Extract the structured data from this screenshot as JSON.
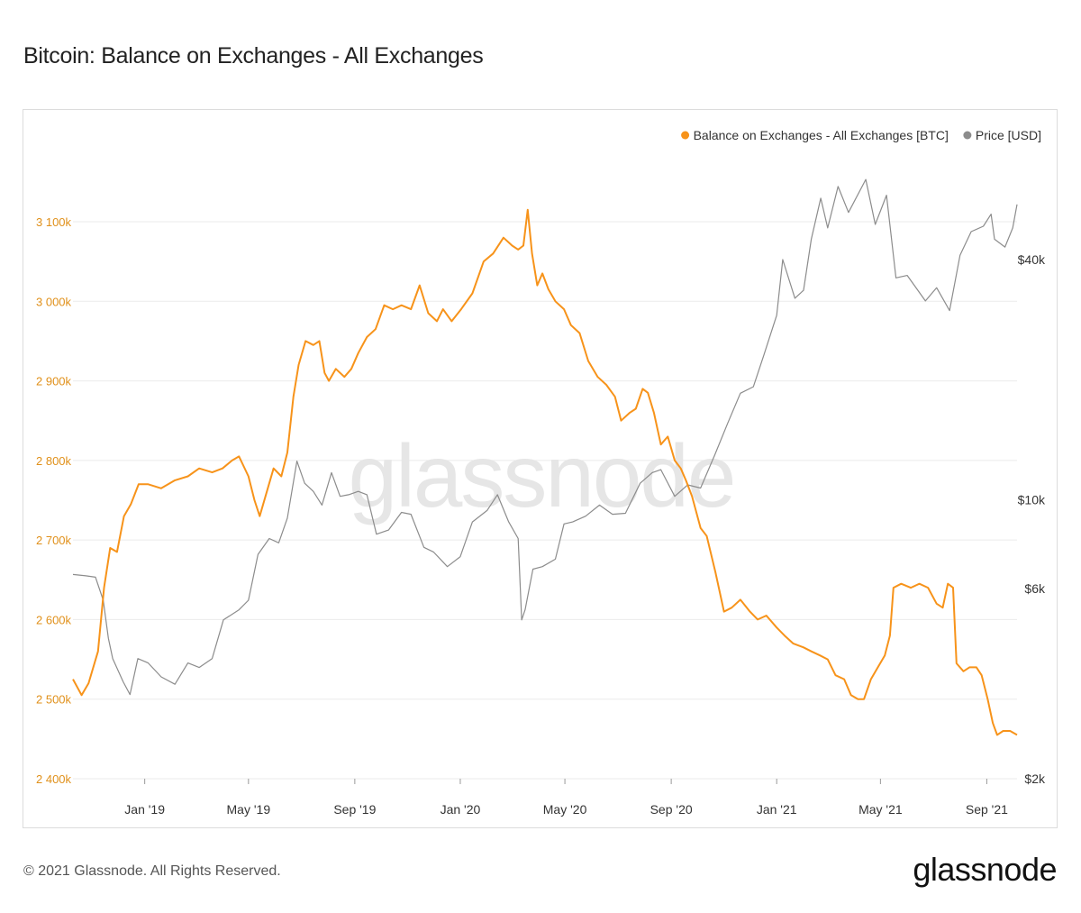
{
  "page": {
    "title": "Bitcoin: Balance on Exchanges - All Exchanges",
    "footer": "© 2021 Glassnode. All Rights Reserved.",
    "brand": "glassnode",
    "watermark": "glassnode"
  },
  "colors": {
    "balance": "#f7931a",
    "price": "#8c8c8c",
    "grid": "#ebebeb",
    "left_axis_text": "#e0901a",
    "right_axis_text": "#333333"
  },
  "chart_data": {
    "type": "line",
    "title": "Bitcoin: Balance on Exchanges - All Exchanges",
    "xlabel": "",
    "x_tick_labels": [
      "Jan '19",
      "May '19",
      "Sep '19",
      "Jan '20",
      "May '20",
      "Sep '20",
      "Jan '21",
      "May '21",
      "Sep '21"
    ],
    "x_tick_dates": [
      "2019-01-01",
      "2019-05-01",
      "2019-09-01",
      "2020-01-01",
      "2020-05-01",
      "2020-09-01",
      "2021-01-01",
      "2021-05-01",
      "2021-09-01"
    ],
    "x_range": [
      "2018-10-10",
      "2021-10-06"
    ],
    "y_left": {
      "label": "",
      "scale": "linear",
      "range": [
        2400000,
        3100000
      ],
      "ticks": [
        2400000,
        2500000,
        2600000,
        2700000,
        2800000,
        2900000,
        3000000,
        3100000
      ],
      "tick_labels": [
        "2 400k",
        "2 500k",
        "2 600k",
        "2 700k",
        "2 800k",
        "2 900k",
        "3 000k",
        "3 100k"
      ]
    },
    "y_right": {
      "label": "",
      "scale": "log",
      "ticks": [
        2000,
        6000,
        10000,
        40000
      ],
      "tick_labels": [
        "$2k",
        "$6k",
        "$10k",
        "$40k"
      ]
    },
    "legend": {
      "position": "top-right",
      "items": [
        "Balance on Exchanges - All Exchanges [BTC]",
        "Price [USD]"
      ]
    },
    "grid": true,
    "series": [
      {
        "name": "Balance on Exchanges - All Exchanges [BTC]",
        "axis": "left",
        "color": "#f7931a",
        "points": [
          [
            "2018-10-10",
            2525000
          ],
          [
            "2018-10-20",
            2505000
          ],
          [
            "2018-10-28",
            2520000
          ],
          [
            "2018-11-08",
            2560000
          ],
          [
            "2018-11-15",
            2640000
          ],
          [
            "2018-11-22",
            2690000
          ],
          [
            "2018-11-30",
            2685000
          ],
          [
            "2018-12-08",
            2730000
          ],
          [
            "2018-12-16",
            2745000
          ],
          [
            "2018-12-25",
            2770000
          ],
          [
            "2019-01-05",
            2770000
          ],
          [
            "2019-01-20",
            2765000
          ],
          [
            "2019-02-05",
            2775000
          ],
          [
            "2019-02-20",
            2780000
          ],
          [
            "2019-03-05",
            2790000
          ],
          [
            "2019-03-20",
            2785000
          ],
          [
            "2019-04-01",
            2790000
          ],
          [
            "2019-04-12",
            2800000
          ],
          [
            "2019-04-20",
            2805000
          ],
          [
            "2019-05-01",
            2780000
          ],
          [
            "2019-05-08",
            2750000
          ],
          [
            "2019-05-14",
            2730000
          ],
          [
            "2019-05-22",
            2760000
          ],
          [
            "2019-05-30",
            2790000
          ],
          [
            "2019-06-08",
            2780000
          ],
          [
            "2019-06-15",
            2810000
          ],
          [
            "2019-06-22",
            2880000
          ],
          [
            "2019-06-28",
            2920000
          ],
          [
            "2019-07-06",
            2950000
          ],
          [
            "2019-07-15",
            2945000
          ],
          [
            "2019-07-22",
            2950000
          ],
          [
            "2019-07-28",
            2910000
          ],
          [
            "2019-08-02",
            2900000
          ],
          [
            "2019-08-10",
            2915000
          ],
          [
            "2019-08-20",
            2905000
          ],
          [
            "2019-08-28",
            2915000
          ],
          [
            "2019-09-05",
            2935000
          ],
          [
            "2019-09-15",
            2955000
          ],
          [
            "2019-09-25",
            2965000
          ],
          [
            "2019-10-05",
            2995000
          ],
          [
            "2019-10-15",
            2990000
          ],
          [
            "2019-10-25",
            2995000
          ],
          [
            "2019-11-05",
            2990000
          ],
          [
            "2019-11-15",
            3020000
          ],
          [
            "2019-11-25",
            2985000
          ],
          [
            "2019-12-05",
            2975000
          ],
          [
            "2019-12-12",
            2990000
          ],
          [
            "2019-12-22",
            2975000
          ],
          [
            "2020-01-02",
            2990000
          ],
          [
            "2020-01-15",
            3010000
          ],
          [
            "2020-01-28",
            3050000
          ],
          [
            "2020-02-08",
            3060000
          ],
          [
            "2020-02-20",
            3080000
          ],
          [
            "2020-03-01",
            3070000
          ],
          [
            "2020-03-08",
            3065000
          ],
          [
            "2020-03-14",
            3070000
          ],
          [
            "2020-03-19",
            3115000
          ],
          [
            "2020-03-24",
            3060000
          ],
          [
            "2020-03-30",
            3020000
          ],
          [
            "2020-04-05",
            3035000
          ],
          [
            "2020-04-12",
            3015000
          ],
          [
            "2020-04-20",
            3000000
          ],
          [
            "2020-04-30",
            2990000
          ],
          [
            "2020-05-08",
            2970000
          ],
          [
            "2020-05-18",
            2960000
          ],
          [
            "2020-05-28",
            2925000
          ],
          [
            "2020-06-08",
            2905000
          ],
          [
            "2020-06-18",
            2895000
          ],
          [
            "2020-06-28",
            2880000
          ],
          [
            "2020-07-05",
            2850000
          ],
          [
            "2020-07-15",
            2860000
          ],
          [
            "2020-07-22",
            2865000
          ],
          [
            "2020-07-30",
            2890000
          ],
          [
            "2020-08-05",
            2885000
          ],
          [
            "2020-08-12",
            2860000
          ],
          [
            "2020-08-20",
            2820000
          ],
          [
            "2020-08-28",
            2830000
          ],
          [
            "2020-09-05",
            2800000
          ],
          [
            "2020-09-12",
            2790000
          ],
          [
            "2020-09-18",
            2775000
          ],
          [
            "2020-09-25",
            2755000
          ],
          [
            "2020-10-05",
            2715000
          ],
          [
            "2020-10-12",
            2705000
          ],
          [
            "2020-10-22",
            2660000
          ],
          [
            "2020-11-01",
            2610000
          ],
          [
            "2020-11-10",
            2615000
          ],
          [
            "2020-11-20",
            2625000
          ],
          [
            "2020-12-01",
            2610000
          ],
          [
            "2020-12-10",
            2600000
          ],
          [
            "2020-12-20",
            2605000
          ],
          [
            "2021-01-01",
            2590000
          ],
          [
            "2021-01-10",
            2580000
          ],
          [
            "2021-01-20",
            2570000
          ],
          [
            "2021-02-01",
            2565000
          ],
          [
            "2021-02-10",
            2560000
          ],
          [
            "2021-02-20",
            2555000
          ],
          [
            "2021-03-01",
            2550000
          ],
          [
            "2021-03-10",
            2530000
          ],
          [
            "2021-03-20",
            2525000
          ],
          [
            "2021-03-28",
            2505000
          ],
          [
            "2021-04-05",
            2500000
          ],
          [
            "2021-04-12",
            2500000
          ],
          [
            "2021-04-20",
            2525000
          ],
          [
            "2021-04-28",
            2540000
          ],
          [
            "2021-05-06",
            2555000
          ],
          [
            "2021-05-12",
            2580000
          ],
          [
            "2021-05-16",
            2640000
          ],
          [
            "2021-05-25",
            2645000
          ],
          [
            "2021-06-05",
            2640000
          ],
          [
            "2021-06-15",
            2645000
          ],
          [
            "2021-06-25",
            2640000
          ],
          [
            "2021-07-05",
            2620000
          ],
          [
            "2021-07-12",
            2615000
          ],
          [
            "2021-07-18",
            2645000
          ],
          [
            "2021-07-24",
            2640000
          ],
          [
            "2021-07-28",
            2545000
          ],
          [
            "2021-08-05",
            2535000
          ],
          [
            "2021-08-12",
            2540000
          ],
          [
            "2021-08-20",
            2540000
          ],
          [
            "2021-08-26",
            2530000
          ],
          [
            "2021-09-02",
            2500000
          ],
          [
            "2021-09-08",
            2470000
          ],
          [
            "2021-09-13",
            2455000
          ],
          [
            "2021-09-20",
            2460000
          ],
          [
            "2021-09-28",
            2460000
          ],
          [
            "2021-10-06",
            2455000
          ]
        ]
      },
      {
        "name": "Price [USD]",
        "axis": "right",
        "color": "#8c8c8c",
        "points": [
          [
            "2018-10-10",
            6500
          ],
          [
            "2018-10-25",
            6450
          ],
          [
            "2018-11-05",
            6400
          ],
          [
            "2018-11-14",
            5600
          ],
          [
            "2018-11-20",
            4500
          ],
          [
            "2018-11-25",
            4000
          ],
          [
            "2018-12-07",
            3500
          ],
          [
            "2018-12-15",
            3250
          ],
          [
            "2018-12-24",
            4000
          ],
          [
            "2019-01-05",
            3900
          ],
          [
            "2019-01-20",
            3600
          ],
          [
            "2019-02-05",
            3450
          ],
          [
            "2019-02-20",
            3900
          ],
          [
            "2019-03-05",
            3800
          ],
          [
            "2019-03-20",
            4000
          ],
          [
            "2019-04-02",
            5000
          ],
          [
            "2019-04-20",
            5300
          ],
          [
            "2019-05-01",
            5600
          ],
          [
            "2019-05-12",
            7300
          ],
          [
            "2019-05-25",
            8000
          ],
          [
            "2019-06-05",
            7800
          ],
          [
            "2019-06-15",
            9000
          ],
          [
            "2019-06-26",
            12500
          ],
          [
            "2019-07-05",
            11000
          ],
          [
            "2019-07-15",
            10500
          ],
          [
            "2019-07-25",
            9700
          ],
          [
            "2019-08-05",
            11700
          ],
          [
            "2019-08-15",
            10200
          ],
          [
            "2019-08-25",
            10300
          ],
          [
            "2019-09-05",
            10500
          ],
          [
            "2019-09-15",
            10300
          ],
          [
            "2019-09-26",
            8200
          ],
          [
            "2019-10-10",
            8400
          ],
          [
            "2019-10-25",
            9300
          ],
          [
            "2019-11-05",
            9200
          ],
          [
            "2019-11-20",
            7600
          ],
          [
            "2019-12-01",
            7400
          ],
          [
            "2019-12-17",
            6800
          ],
          [
            "2020-01-01",
            7200
          ],
          [
            "2020-01-15",
            8800
          ],
          [
            "2020-02-01",
            9400
          ],
          [
            "2020-02-13",
            10300
          ],
          [
            "2020-02-26",
            8800
          ],
          [
            "2020-03-08",
            8000
          ],
          [
            "2020-03-12",
            5000
          ],
          [
            "2020-03-16",
            5300
          ],
          [
            "2020-03-25",
            6700
          ],
          [
            "2020-04-05",
            6800
          ],
          [
            "2020-04-20",
            7100
          ],
          [
            "2020-04-30",
            8700
          ],
          [
            "2020-05-10",
            8800
          ],
          [
            "2020-05-25",
            9100
          ],
          [
            "2020-06-10",
            9700
          ],
          [
            "2020-06-25",
            9200
          ],
          [
            "2020-07-10",
            9250
          ],
          [
            "2020-07-27",
            11000
          ],
          [
            "2020-08-10",
            11700
          ],
          [
            "2020-08-20",
            11900
          ],
          [
            "2020-09-05",
            10200
          ],
          [
            "2020-09-20",
            10900
          ],
          [
            "2020-10-05",
            10700
          ],
          [
            "2020-10-21",
            12900
          ],
          [
            "2020-11-05",
            15500
          ],
          [
            "2020-11-20",
            18500
          ],
          [
            "2020-12-05",
            19200
          ],
          [
            "2020-12-17",
            23000
          ],
          [
            "2021-01-01",
            29000
          ],
          [
            "2021-01-08",
            40000
          ],
          [
            "2021-01-22",
            32000
          ],
          [
            "2021-02-01",
            33500
          ],
          [
            "2021-02-10",
            45000
          ],
          [
            "2021-02-21",
            57000
          ],
          [
            "2021-03-01",
            48000
          ],
          [
            "2021-03-13",
            61000
          ],
          [
            "2021-03-25",
            52500
          ],
          [
            "2021-04-14",
            63500
          ],
          [
            "2021-04-25",
            49000
          ],
          [
            "2021-05-08",
            58000
          ],
          [
            "2021-05-19",
            36000
          ],
          [
            "2021-06-01",
            36500
          ],
          [
            "2021-06-22",
            31500
          ],
          [
            "2021-07-05",
            34000
          ],
          [
            "2021-07-20",
            29800
          ],
          [
            "2021-08-01",
            41000
          ],
          [
            "2021-08-14",
            47000
          ],
          [
            "2021-08-28",
            48500
          ],
          [
            "2021-09-06",
            52000
          ],
          [
            "2021-09-10",
            45000
          ],
          [
            "2021-09-22",
            43000
          ],
          [
            "2021-10-01",
            48000
          ],
          [
            "2021-10-06",
            55000
          ]
        ]
      }
    ]
  }
}
